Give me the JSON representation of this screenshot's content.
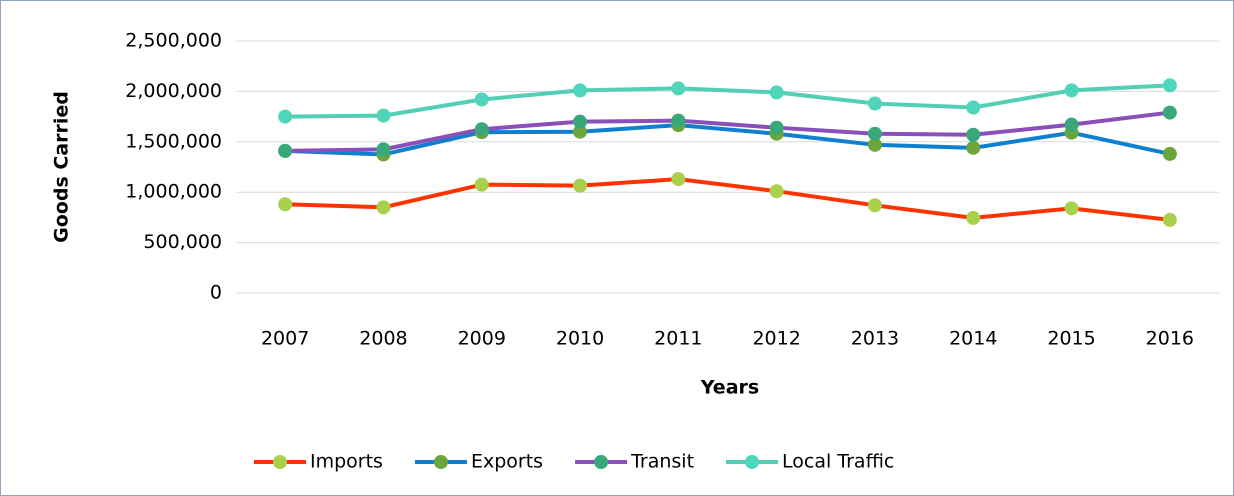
{
  "chart_data": {
    "type": "line",
    "xlabel": "Years",
    "ylabel": "Goods Carried",
    "categories": [
      "2007",
      "2008",
      "2009",
      "2010",
      "2011",
      "2012",
      "2013",
      "2014",
      "2015",
      "2016"
    ],
    "series": [
      {
        "name": "Imports",
        "color": "#ff3300",
        "marker_color": "#a9d04b",
        "values": [
          880000,
          850000,
          1075000,
          1065000,
          1130000,
          1010000,
          870000,
          745000,
          840000,
          725000
        ]
      },
      {
        "name": "Exports",
        "color": "#0f7fcf",
        "marker_color": "#6aa63c",
        "values": [
          1410000,
          1375000,
          1595000,
          1600000,
          1665000,
          1580000,
          1470000,
          1440000,
          1590000,
          1380000
        ]
      },
      {
        "name": "Transit",
        "color": "#8a4fb8",
        "marker_color": "#38a87a",
        "values": [
          1410000,
          1425000,
          1625000,
          1700000,
          1710000,
          1640000,
          1580000,
          1570000,
          1670000,
          1790000
        ]
      },
      {
        "name": "Local Traffic",
        "color": "#52cfb6",
        "marker_color": "#4fd5b9",
        "values": [
          1750000,
          1760000,
          1920000,
          2010000,
          2030000,
          1990000,
          1880000,
          1840000,
          2010000,
          2060000
        ]
      }
    ],
    "ylim": [
      0,
      2500000
    ],
    "yticks": [
      0,
      {
        "value": 500000,
        "label": "500,000"
      },
      {
        "value": 1000000,
        "label": "1,000,000"
      },
      {
        "value": 1500000,
        "label": "1,500,000"
      },
      {
        "value": 2000000,
        "label": "2,000,000"
      },
      {
        "value": 2500000,
        "label": "2,500,000"
      }
    ],
    "grid": true,
    "legend": "bottom"
  }
}
